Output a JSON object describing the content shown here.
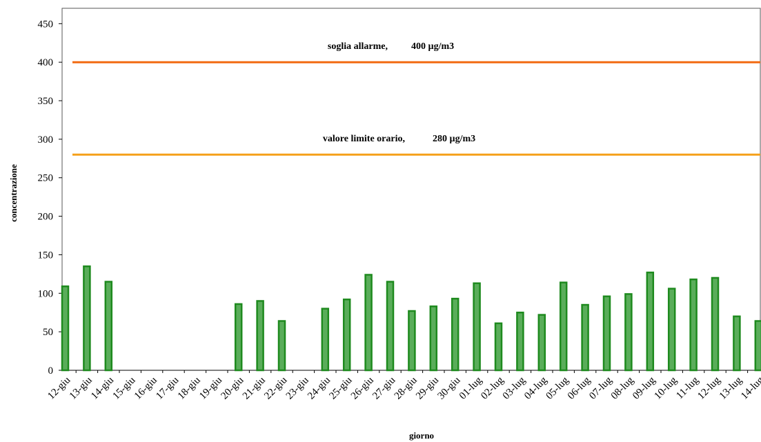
{
  "chart_data": {
    "type": "bar",
    "xlabel": "giorno",
    "ylabel": "concentrazione",
    "ylim": [
      0,
      470
    ],
    "yticks": [
      0,
      50,
      100,
      150,
      200,
      250,
      300,
      350,
      400,
      450
    ],
    "grid": false,
    "categories": [
      "12-giu",
      "13-giu",
      "14-giu",
      "15-giu",
      "16-giu",
      "17-giu",
      "18-giu",
      "19-giu",
      "20-giu",
      "21-giu",
      "22-giu",
      "23-giu",
      "24-giu",
      "25-giu",
      "26-giu",
      "27-giu",
      "28-giu",
      "29-giu",
      "30-giu",
      "01-lug",
      "02-lug",
      "03-lug",
      "04-lug",
      "05-lug",
      "06-lug",
      "07-lug",
      "08-lug",
      "09-lug",
      "10-lug",
      "11-lug",
      "12-lug",
      "13-lug",
      "14-lug"
    ],
    "values": [
      109,
      135,
      115,
      null,
      null,
      null,
      null,
      null,
      86,
      90,
      64,
      null,
      80,
      92,
      124,
      115,
      77,
      83,
      93,
      113,
      61,
      75,
      72,
      114,
      85,
      96,
      99,
      127,
      106,
      118,
      120,
      70,
      64
    ],
    "bar_color": "#1e8a1e",
    "reference_lines": [
      {
        "value": 400,
        "label_name": "soglia allarme,",
        "label_value": "400 µg/m3",
        "color": "#f26a10"
      },
      {
        "value": 280,
        "label_name": "valore limite orario,",
        "label_value": "280 µg/m3",
        "color": "#f5a01a"
      }
    ]
  }
}
